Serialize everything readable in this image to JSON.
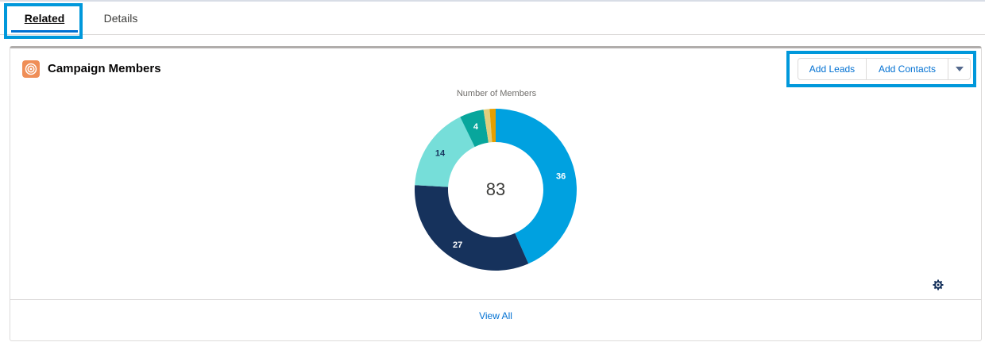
{
  "tabs": {
    "related": "Related",
    "details": "Details"
  },
  "card": {
    "title": "Campaign Members",
    "icon": "campaign-members-icon",
    "icon_color": "#ef8e57",
    "buttons": {
      "add_leads": "Add Leads",
      "add_contacts": "Add Contacts",
      "more": "chevron-down-icon"
    },
    "view_all": "View All"
  },
  "chart_data": {
    "type": "pie",
    "title": "Number of Members",
    "total": "83",
    "slices": [
      {
        "value": 36,
        "label": "36",
        "color": "#00a1e0"
      },
      {
        "value": 27,
        "label": "27",
        "color": "#16325c"
      },
      {
        "value": 14,
        "label": "14",
        "color": "#76ded9"
      },
      {
        "value": 4,
        "label": "4",
        "color": "#08a69c"
      },
      {
        "value": 1,
        "label": "",
        "color": "#e2ce7d"
      },
      {
        "value": 1,
        "label": "",
        "color": "#e69f00"
      }
    ]
  },
  "colors": {
    "accent": "#0070d2",
    "highlight": "#0098db"
  }
}
